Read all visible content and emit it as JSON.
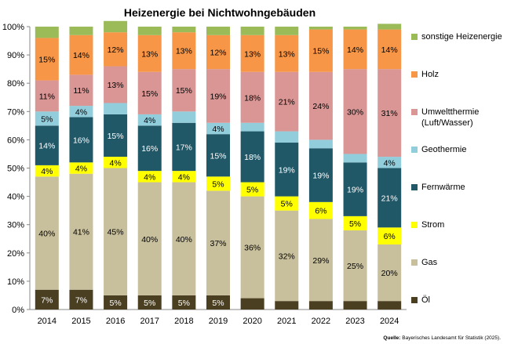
{
  "chart_data": {
    "type": "bar",
    "stacked": true,
    "percent": true,
    "title": "Heizenergie bei Nichtwohngebäuden",
    "categories": [
      "2014",
      "2015",
      "2016",
      "2017",
      "2018",
      "2019",
      "2020",
      "2021",
      "2022",
      "2023",
      "2024"
    ],
    "ylim": [
      0,
      100
    ],
    "yticks": [
      "0%",
      "10%",
      "20%",
      "30%",
      "40%",
      "50%",
      "60%",
      "70%",
      "80%",
      "90%",
      "100%"
    ],
    "legend_position": "right",
    "series": [
      {
        "name": "Öl",
        "color": "#4b3f22",
        "label_color": "#ffffff",
        "values": [
          7,
          7,
          5,
          5,
          5,
          5,
          4,
          3,
          3,
          3,
          3
        ],
        "labels": [
          "7%",
          "7%",
          "5%",
          "5%",
          "5%",
          "5%",
          "",
          "",
          "",
          "",
          ""
        ]
      },
      {
        "name": "Gas",
        "color": "#c8bf9c",
        "label_color": "#000000",
        "values": [
          40,
          41,
          45,
          40,
          40,
          37,
          36,
          32,
          29,
          25,
          20
        ],
        "labels": [
          "40%",
          "41%",
          "45%",
          "40%",
          "40%",
          "37%",
          "36%",
          "32%",
          "29%",
          "25%",
          "20%"
        ]
      },
      {
        "name": "Strom",
        "color": "#ffff00",
        "label_color": "#000000",
        "values": [
          4,
          4,
          4,
          4,
          4,
          5,
          5,
          5,
          6,
          5,
          6
        ],
        "labels": [
          "4%",
          "4%",
          "4%",
          "4%",
          "4%",
          "5%",
          "5%",
          "5%",
          "6%",
          "5%",
          "6%"
        ]
      },
      {
        "name": "Fernwärme",
        "color": "#215868",
        "label_color": "#ffffff",
        "values": [
          14,
          16,
          15,
          16,
          17,
          15,
          18,
          19,
          19,
          19,
          21
        ],
        "labels": [
          "14%",
          "16%",
          "15%",
          "16%",
          "17%",
          "15%",
          "18%",
          "19%",
          "19%",
          "19%",
          "21%"
        ]
      },
      {
        "name": "Geothermie",
        "color": "#92cddc",
        "label_color": "#000000",
        "values": [
          5,
          4,
          4,
          4,
          4,
          4,
          3,
          4,
          3,
          3,
          4
        ],
        "labels": [
          "5%",
          "4%",
          "",
          "4%",
          "",
          "4%",
          "",
          "",
          "",
          "",
          "4%"
        ]
      },
      {
        "name": "Umweltthermie\n(Luft/Wasser)",
        "color": "#d99694",
        "label_color": "#000000",
        "values": [
          11,
          11,
          13,
          15,
          15,
          19,
          18,
          21,
          24,
          30,
          31
        ],
        "labels": [
          "11%",
          "11%",
          "13%",
          "15%",
          "15%",
          "19%",
          "18%",
          "21%",
          "24%",
          "30%",
          "31%"
        ]
      },
      {
        "name": "Holz",
        "color": "#f79646",
        "label_color": "#000000",
        "values": [
          15,
          14,
          12,
          13,
          13,
          12,
          13,
          13,
          15,
          14,
          14
        ],
        "labels": [
          "15%",
          "14%",
          "12%",
          "13%",
          "13%",
          "12%",
          "13%",
          "13%",
          "15%",
          "14%",
          "14%"
        ]
      },
      {
        "name": "sonstige Heizenergie",
        "color": "#9bbb59",
        "label_color": "#000000",
        "values": [
          4,
          3,
          4,
          3,
          2,
          3,
          3,
          3,
          1,
          1,
          2
        ],
        "labels": [
          "",
          "",
          "",
          "",
          "",
          "",
          "",
          "",
          "",
          "",
          ""
        ]
      }
    ]
  },
  "source": {
    "prefix": "Quelle:",
    "text": " Bayerisches Landesamt für Statistik (2025)."
  }
}
